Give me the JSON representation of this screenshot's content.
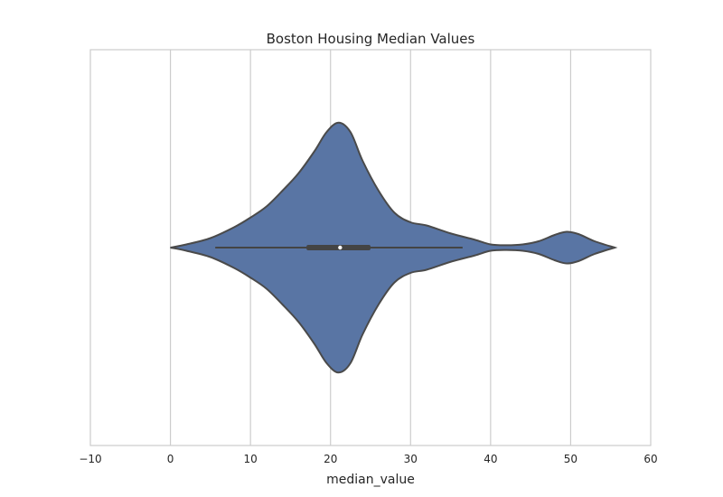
{
  "chart_data": {
    "type": "violin",
    "title": "Boston Housing Median Values",
    "xlabel": "median_value",
    "ylabel": "",
    "xlim": [
      -10,
      60
    ],
    "xticks": [
      -10,
      0,
      10,
      20,
      30,
      40,
      50,
      60
    ],
    "xtick_labels": [
      "−10",
      "0",
      "10",
      "20",
      "30",
      "40",
      "50",
      "60"
    ],
    "grid": "vertical",
    "series": [
      {
        "name": "median_value",
        "color": "#5975a4",
        "edge_color": "#4a4a4a",
        "density_profile": [
          [
            0.0,
            0.0
          ],
          [
            2.0,
            0.02
          ],
          [
            5.0,
            0.06
          ],
          [
            8.0,
            0.13
          ],
          [
            10.0,
            0.19
          ],
          [
            12.0,
            0.26
          ],
          [
            14.0,
            0.36
          ],
          [
            16.0,
            0.47
          ],
          [
            18.0,
            0.61
          ],
          [
            19.5,
            0.73
          ],
          [
            21.0,
            0.79
          ],
          [
            22.5,
            0.73
          ],
          [
            24.0,
            0.55
          ],
          [
            26.0,
            0.36
          ],
          [
            28.0,
            0.22
          ],
          [
            30.0,
            0.16
          ],
          [
            32.0,
            0.14
          ],
          [
            35.0,
            0.09
          ],
          [
            38.0,
            0.05
          ],
          [
            40.0,
            0.02
          ],
          [
            42.0,
            0.015
          ],
          [
            44.0,
            0.02
          ],
          [
            46.0,
            0.04
          ],
          [
            48.0,
            0.08
          ],
          [
            49.5,
            0.1
          ],
          [
            51.0,
            0.085
          ],
          [
            53.0,
            0.04
          ],
          [
            55.5,
            0.0
          ]
        ],
        "whisker_low": 5.6,
        "q1": 17.0,
        "median": 21.2,
        "q3": 25.0,
        "whisker_high": 36.5
      }
    ]
  }
}
